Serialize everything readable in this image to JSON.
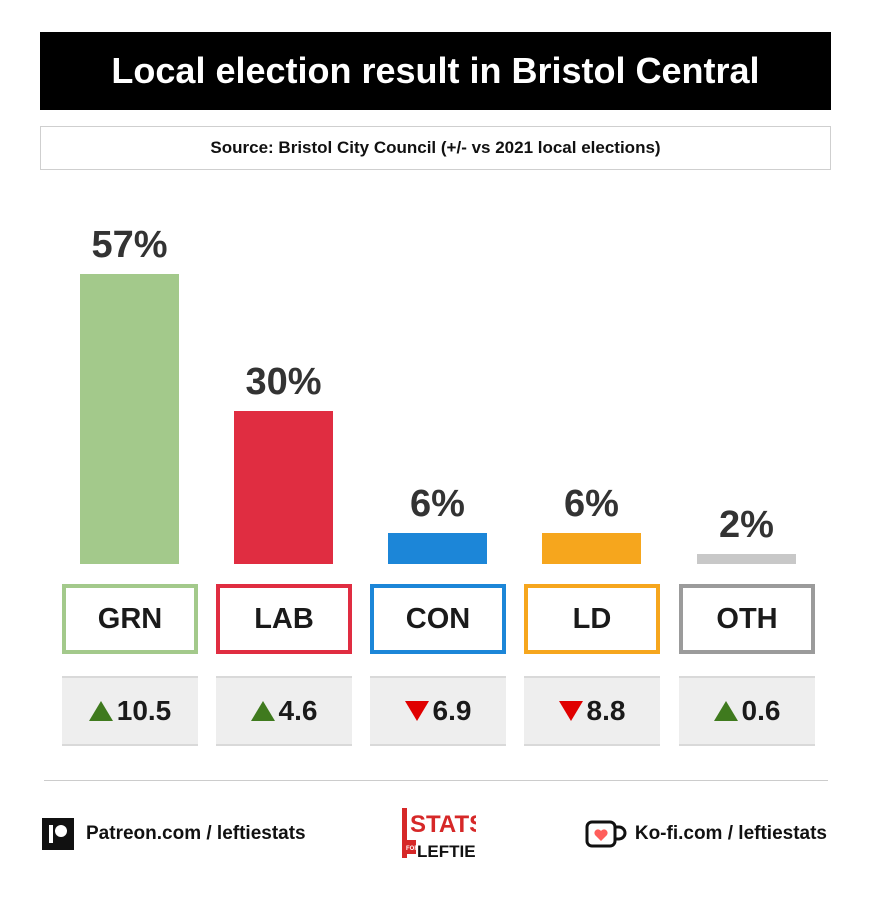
{
  "title": "Local election result in Bristol Central",
  "source": "Source: Bristol City Council (+/- vs 2021 local elections)",
  "chart_data": {
    "type": "bar",
    "title": "Local election result in Bristol Central",
    "categories": [
      "GRN",
      "LAB",
      "CON",
      "LD",
      "OTH"
    ],
    "values": [
      57,
      30,
      6,
      6,
      2
    ],
    "value_labels": [
      "57%",
      "30%",
      "6%",
      "6%",
      "2%"
    ],
    "changes": [
      {
        "direction": "up",
        "value": "10.5"
      },
      {
        "direction": "up",
        "value": "4.6"
      },
      {
        "direction": "down",
        "value": "6.9"
      },
      {
        "direction": "down",
        "value": "8.8"
      },
      {
        "direction": "up",
        "value": "0.6"
      }
    ],
    "colors": [
      "#a3c98b",
      "#e02d41",
      "#1c86d8",
      "#f6a61d",
      "#c8c8c8"
    ],
    "box_border_colors": [
      "#a3c98b",
      "#e02d41",
      "#1c86d8",
      "#f6a61d",
      "#9b9b9b"
    ],
    "ylim": [
      0,
      57
    ],
    "grid": false
  },
  "footer": {
    "patreon": "Patreon.com / leftiestats",
    "kofi": "Ko-fi.com / leftiestats",
    "logo_line1": "STATS",
    "logo_line2": "FOR",
    "logo_line3": "LEFTIES"
  },
  "icons": {
    "patreon": "patreon-icon",
    "kofi": "kofi-cup-icon",
    "up": "triangle-up-icon",
    "down": "triangle-down-icon"
  }
}
